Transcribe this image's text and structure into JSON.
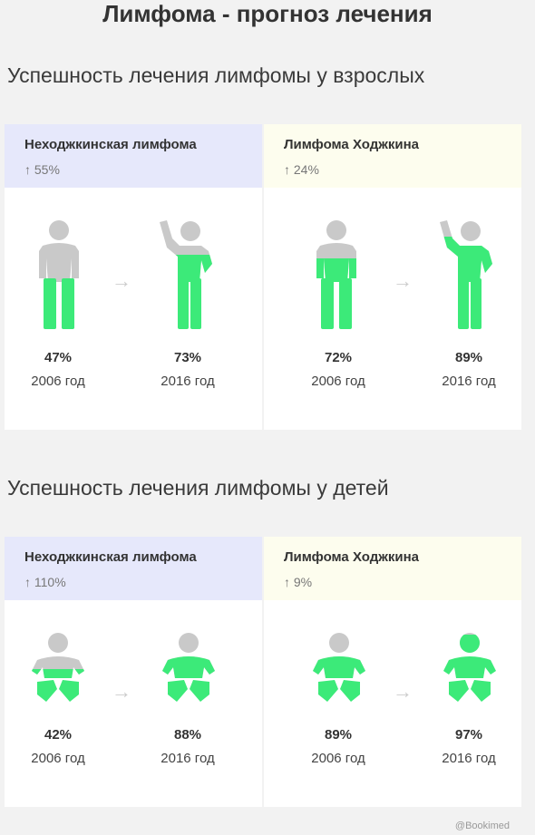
{
  "title": "Лимфома - прогноз лечения",
  "credit": "@Bookimed",
  "colors": {
    "green": "#3cea79",
    "gray": "#c9c9c9",
    "blue_head": "#e6e8fb",
    "yellow_head": "#fdfdee"
  },
  "adults": {
    "heading": "Успешность лечения лимфомы у взрослых",
    "cards": [
      {
        "name": "Неходжкинская лимфома",
        "growth": "↑ 55%",
        "before_pct": "47%",
        "before_year": "2006 год",
        "after_pct": "73%",
        "after_year": "2016 год"
      },
      {
        "name": "Лимфома Ходжкина",
        "growth": "↑ 24%",
        "before_pct": "72%",
        "before_year": "2006 год",
        "after_pct": "89%",
        "after_year": "2016 год"
      }
    ]
  },
  "children": {
    "heading": "Успешность лечения лимфомы у детей",
    "cards": [
      {
        "name": "Неходжкинская лимфома",
        "growth": "↑ 110%",
        "before_pct": "42%",
        "before_year": "2006 год",
        "after_pct": "88%",
        "after_year": "2016 год"
      },
      {
        "name": "Лимфома Ходжкина",
        "growth": "↑ 9%",
        "before_pct": "89%",
        "before_year": "2006 год",
        "after_pct": "97%",
        "after_year": "2016 год"
      }
    ]
  },
  "arrow_glyph": "→"
}
